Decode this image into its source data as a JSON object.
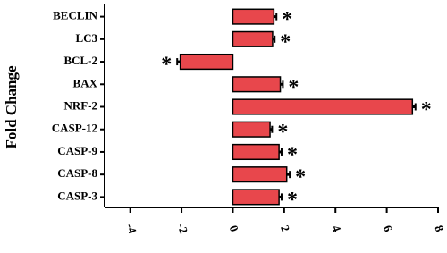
{
  "chart_data": {
    "type": "hbar",
    "y_label": "Fold Change",
    "categories": [
      "BECLIN",
      "LC3",
      "BCL-2",
      "BAX",
      "NRF-2",
      "CASP-12",
      "CASP-9",
      "CASP-8",
      "CASP-3"
    ],
    "values": [
      1.6,
      1.55,
      -2.05,
      1.85,
      7.0,
      1.45,
      1.8,
      2.1,
      1.8
    ],
    "errors": [
      0.1,
      0.08,
      0.12,
      0.1,
      0.12,
      0.08,
      0.1,
      0.12,
      0.1
    ],
    "significance": [
      "*",
      "*",
      "*",
      "*",
      "*",
      "*",
      "*",
      "*",
      "*"
    ],
    "color": "#e8474c",
    "xlim": [
      -5,
      8
    ],
    "xticks": [
      -4,
      -2,
      0,
      2,
      4,
      6,
      8
    ]
  }
}
